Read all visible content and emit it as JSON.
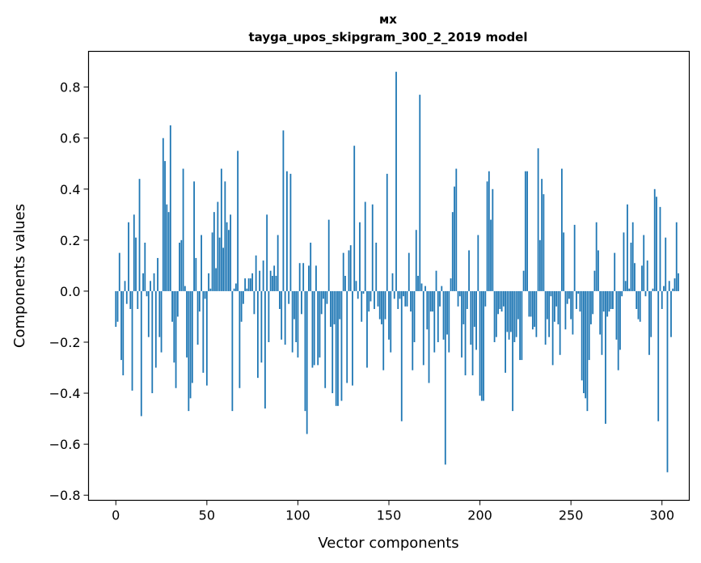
{
  "chart_data": {
    "type": "bar",
    "title": "мх",
    "subtitle": "tayga_upos_skipgram_300_2_2019 model",
    "xlabel": "Vector components",
    "ylabel": "Components values",
    "xlim": [
      -15,
      315
    ],
    "ylim": [
      -0.82,
      0.94
    ],
    "x_ticks": [
      0,
      50,
      100,
      150,
      200,
      250,
      300
    ],
    "x_tick_labels": [
      "0",
      "50",
      "100",
      "150",
      "200",
      "250",
      "300"
    ],
    "y_ticks": [
      -0.8,
      -0.6,
      -0.4,
      -0.2,
      0.0,
      0.2,
      0.4,
      0.6,
      0.8
    ],
    "y_tick_labels": [
      "−0.8",
      "−0.6",
      "−0.4",
      "−0.2",
      "0.0",
      "0.2",
      "0.4",
      "0.6",
      "0.8"
    ],
    "bar_color": "#1f77b4",
    "grid": false,
    "values": [
      -0.14,
      -0.12,
      0.15,
      -0.27,
      -0.33,
      0.04,
      -0.05,
      0.27,
      -0.07,
      -0.39,
      0.3,
      0.21,
      -0.07,
      0.44,
      -0.49,
      0.07,
      0.19,
      -0.02,
      -0.18,
      0.04,
      -0.4,
      0.07,
      -0.3,
      0.13,
      -0.18,
      -0.24,
      0.6,
      0.51,
      0.34,
      0.31,
      0.65,
      -0.12,
      -0.28,
      -0.38,
      -0.1,
      0.19,
      0.2,
      0.48,
      0.02,
      -0.26,
      -0.47,
      -0.42,
      -0.36,
      0.43,
      0.13,
      -0.21,
      -0.08,
      0.22,
      -0.32,
      -0.03,
      -0.37,
      0.07,
      0.01,
      0.23,
      0.31,
      0.09,
      0.35,
      0.21,
      0.48,
      0.17,
      0.43,
      0.27,
      0.24,
      0.3,
      -0.47,
      0.01,
      0.03,
      0.55,
      -0.38,
      -0.12,
      -0.05,
      0.05,
      0.01,
      0.05,
      0.05,
      0.07,
      -0.09,
      0.14,
      -0.34,
      0.08,
      -0.28,
      0.12,
      -0.46,
      0.3,
      -0.2,
      0.08,
      0.06,
      0.1,
      0.06,
      0.22,
      -0.07,
      -0.19,
      0.63,
      -0.21,
      0.47,
      -0.05,
      0.46,
      -0.24,
      -0.11,
      -0.2,
      -0.26,
      0.11,
      -0.09,
      0.11,
      -0.47,
      -0.56,
      0.1,
      0.19,
      -0.3,
      -0.29,
      0.1,
      -0.29,
      -0.26,
      -0.09,
      -0.03,
      -0.38,
      -0.05,
      0.28,
      -0.14,
      -0.4,
      -0.13,
      -0.45,
      -0.45,
      -0.11,
      -0.43,
      0.15,
      0.06,
      -0.36,
      0.16,
      0.18,
      -0.37,
      0.57,
      0.04,
      -0.03,
      0.27,
      -0.12,
      -0.01,
      0.35,
      -0.3,
      -0.08,
      -0.04,
      0.34,
      -0.07,
      0.19,
      -0.06,
      -0.11,
      -0.13,
      -0.31,
      -0.11,
      0.46,
      -0.19,
      -0.24,
      0.07,
      -0.03,
      0.86,
      -0.07,
      -0.03,
      -0.51,
      -0.02,
      -0.06,
      -0.06,
      0.15,
      -0.08,
      -0.31,
      -0.2,
      0.24,
      0.06,
      0.77,
      0.03,
      -0.29,
      0.02,
      -0.15,
      -0.36,
      -0.08,
      -0.08,
      -0.24,
      0.08,
      -0.2,
      -0.06,
      0.02,
      -0.19,
      -0.68,
      -0.17,
      -0.24,
      0.05,
      0.31,
      0.41,
      0.48,
      -0.06,
      -0.02,
      -0.26,
      -0.13,
      -0.33,
      -0.07,
      0.16,
      -0.21,
      -0.33,
      -0.14,
      -0.23,
      0.22,
      -0.41,
      -0.43,
      -0.43,
      -0.06,
      0.43,
      0.47,
      0.28,
      0.4,
      -0.2,
      -0.18,
      -0.09,
      -0.07,
      -0.08,
      -0.06,
      -0.32,
      -0.16,
      -0.19,
      -0.16,
      -0.47,
      -0.2,
      -0.18,
      -0.11,
      -0.27,
      -0.27,
      0.08,
      0.47,
      0.47,
      -0.1,
      -0.1,
      -0.15,
      -0.14,
      -0.18,
      0.56,
      0.2,
      0.44,
      0.38,
      -0.21,
      -0.11,
      -0.18,
      -0.02,
      -0.29,
      -0.12,
      -0.06,
      -0.13,
      -0.25,
      0.48,
      0.23,
      -0.15,
      -0.05,
      -0.03,
      -0.11,
      -0.17,
      0.26,
      -0.07,
      -0.01,
      -0.08,
      -0.35,
      -0.4,
      -0.42,
      -0.47,
      -0.27,
      -0.13,
      -0.09,
      0.08,
      0.27,
      0.16,
      -0.17,
      -0.25,
      -0.08,
      -0.52,
      -0.1,
      -0.08,
      -0.07,
      -0.07,
      0.15,
      -0.19,
      -0.31,
      -0.23,
      -0.02,
      0.23,
      0.04,
      0.34,
      0.01,
      0.19,
      0.27,
      0.11,
      -0.07,
      -0.11,
      -0.12,
      0.1,
      0.22,
      -0.02,
      0.12,
      -0.25,
      -0.18,
      0.01,
      0.4,
      0.37,
      -0.51,
      0.33,
      -0.07,
      0.02,
      0.21,
      -0.71,
      0.04,
      -0.18,
      0.01,
      0.05,
      0.27,
      0.07
    ]
  }
}
